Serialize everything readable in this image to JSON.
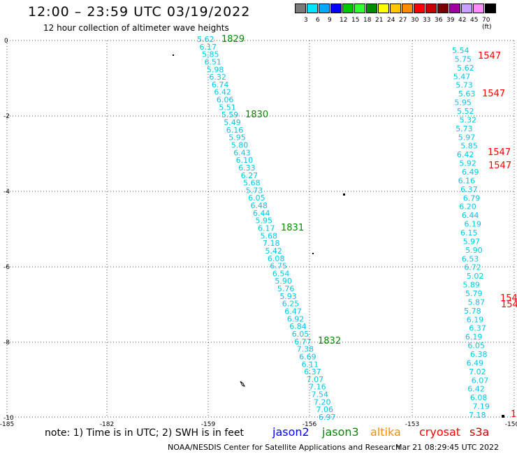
{
  "title": "12:00 – 23:59 UTC 03/19/2022",
  "subtitle": "12 hour collection of altimeter wave heights",
  "color_scale": {
    "labels": [
      "3",
      "6",
      "9",
      "12",
      "15",
      "18",
      "21",
      "24",
      "27",
      "30",
      "33",
      "36",
      "39",
      "42",
      "45",
      "70 (ft)"
    ],
    "colors": [
      "#7a7a7a",
      "#00e5ff",
      "#00a8ff",
      "#0000ff",
      "#00c800",
      "#32ff32",
      "#008c00",
      "#ffff00",
      "#ffc800",
      "#ff8c00",
      "#ff0000",
      "#c80000",
      "#780000",
      "#a000a0",
      "#c8a0ff",
      "#ff8cff",
      "#000000"
    ]
  },
  "axes": {
    "x_ticks": [
      "-185",
      "-182",
      "-159",
      "-156",
      "-153",
      "-150"
    ],
    "y_ticks": [
      "0",
      "-2",
      "-4",
      "-6",
      "-8",
      "-10"
    ]
  },
  "tracks": [
    {
      "time": [
        "1829",
        "1830",
        "1831",
        "1832"
      ],
      "swh": [
        "5.62",
        "6.17",
        "5.85",
        "6.51",
        "5.98",
        "6.32",
        "6.74",
        "6.42",
        "6.06",
        "5.51",
        "5.59",
        "5.49",
        "6.16",
        "5.95",
        "5.80",
        "6.43",
        "6.10",
        "6.33",
        "6.27",
        "5.68",
        "5.73",
        "6.05",
        "6.48",
        "6.44",
        "5.95",
        "6.17",
        "5.68",
        "7.18",
        "5.42",
        "6.08",
        "6.75",
        "6.54",
        "5.90",
        "5.76",
        "5.93",
        "6.25",
        "6.47",
        "6.92",
        "6.84",
        "6.05",
        "6.77",
        "7.38",
        "6.69",
        "6.11",
        "6.37",
        "7.07",
        "7.16",
        "7.54",
        "7.20",
        "7.06",
        "6.97"
      ]
    },
    {
      "time": [
        "1547",
        "1547",
        "1547",
        "1547",
        "154",
        "154",
        "1"
      ],
      "swh": [
        "5.54",
        "5.75",
        "5.62",
        "5.47",
        "5.73",
        "5.63",
        "5.95",
        "5.52",
        "5.32",
        "5.73",
        "5.97",
        "5.85",
        "6.42",
        "5.92",
        "6.49",
        "6.16",
        "6.37",
        "6.79",
        "6.20",
        "6.44",
        "6.19",
        "6.15",
        "5.97",
        "5.90",
        "6.53",
        "6.72",
        "5.02",
        "5.89",
        "5.79",
        "5.87",
        "5.78",
        "6.19",
        "6.37",
        "6.19",
        "6.05",
        "6.38",
        "6.49",
        "7.02",
        "6.07",
        "6.42",
        "6.08",
        "7.19",
        "7.18"
      ]
    }
  ],
  "legend": {
    "note": "note: 1) Time is in UTC; 2) SWH is in feet",
    "satellites": [
      {
        "name": "jason2",
        "color": "#0000ff"
      },
      {
        "name": "jason3",
        "color": "#008c00"
      },
      {
        "name": "altika",
        "color": "#ff8c00"
      },
      {
        "name": "cryosat",
        "color": "#ff0000"
      },
      {
        "name": "s3a",
        "color": "#c80000"
      }
    ]
  },
  "credit": "NOAA/NESDIS Center for Satellite Applications and Research",
  "timestamp": "Mar 21 08:29:45 UTC 2022"
}
